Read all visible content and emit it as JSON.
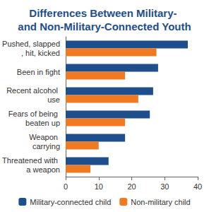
{
  "chart_data": {
    "type": "bar",
    "orientation": "horizontal",
    "title": "Differences Between Military- and Non-Military-Connected Youth",
    "categories": [
      "Pushed, slapped, hit, kicked",
      "Been in fight",
      "Recent alcohol use",
      "Fears of being beaten up",
      "Weapon carrying",
      "Threatened with a weapon"
    ],
    "series": [
      {
        "name": "Military-connected child",
        "color": "#1f4e8c",
        "values": [
          37,
          28,
          26.5,
          25.5,
          18,
          13
        ]
      },
      {
        "name": "Non-military child",
        "color": "#f07a22",
        "values": [
          27.5,
          18,
          22,
          18,
          10,
          7.5
        ]
      }
    ],
    "xlim": [
      0,
      40
    ],
    "xticks": [
      0,
      10,
      20,
      30,
      40
    ],
    "grid": false,
    "legend": "bottom"
  }
}
